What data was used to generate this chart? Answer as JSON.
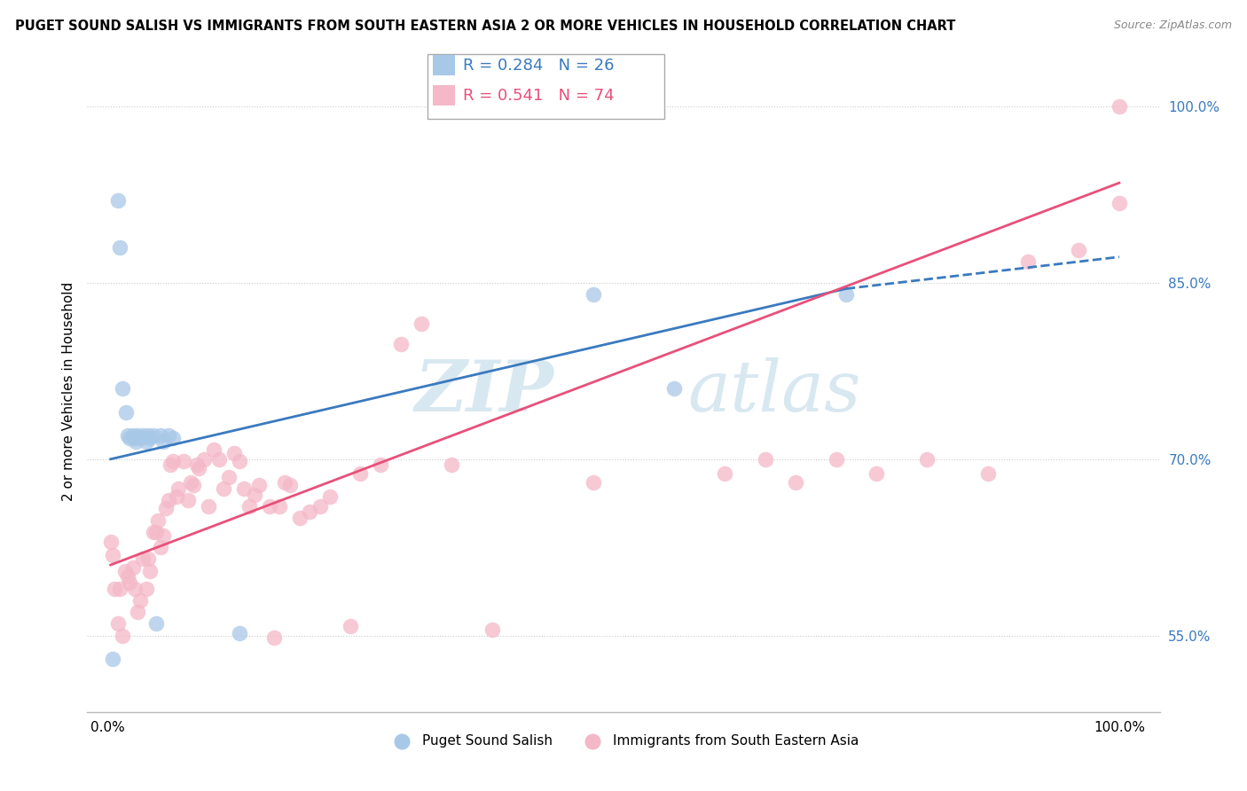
{
  "title": "PUGET SOUND SALISH VS IMMIGRANTS FROM SOUTH EASTERN ASIA 2 OR MORE VEHICLES IN HOUSEHOLD CORRELATION CHART",
  "source": "Source: ZipAtlas.com",
  "ylabel": "2 or more Vehicles in Household",
  "xlim": [
    -0.02,
    1.04
  ],
  "ylim": [
    0.485,
    1.03
  ],
  "x_tick_labels": [
    "0.0%",
    "100.0%"
  ],
  "x_tick_positions": [
    0.0,
    1.0
  ],
  "y_tick_positions": [
    0.55,
    0.7,
    0.85,
    1.0
  ],
  "y_tick_labels": [
    "55.0%",
    "70.0%",
    "85.0%",
    "100.0%"
  ],
  "legend_labels": [
    "Puget Sound Salish",
    "Immigrants from South Eastern Asia"
  ],
  "legend_r_n": [
    {
      "R": "0.284",
      "N": "26"
    },
    {
      "R": "0.541",
      "N": "74"
    }
  ],
  "blue_color": "#a8c8e8",
  "pink_color": "#f4b8c8",
  "blue_line_color": "#3a7abf",
  "pink_line_color": "#e8507a",
  "watermark_zip": "ZIP",
  "watermark_atlas": "atlas",
  "blue_scatter_x": [
    0.005,
    0.01,
    0.012,
    0.015,
    0.018,
    0.02,
    0.022,
    0.025,
    0.027,
    0.028,
    0.03,
    0.032,
    0.035,
    0.038,
    0.04,
    0.042,
    0.045,
    0.048,
    0.052,
    0.055,
    0.06,
    0.065,
    0.13,
    0.48,
    0.56,
    0.73
  ],
  "blue_scatter_y": [
    0.53,
    0.92,
    0.88,
    0.76,
    0.74,
    0.72,
    0.718,
    0.72,
    0.718,
    0.715,
    0.72,
    0.718,
    0.72,
    0.715,
    0.72,
    0.718,
    0.72,
    0.56,
    0.72,
    0.715,
    0.72,
    0.718,
    0.552,
    0.84,
    0.76,
    0.84
  ],
  "pink_scatter_x": [
    0.003,
    0.005,
    0.007,
    0.01,
    0.012,
    0.015,
    0.017,
    0.02,
    0.022,
    0.025,
    0.027,
    0.03,
    0.032,
    0.035,
    0.038,
    0.04,
    0.042,
    0.045,
    0.048,
    0.05,
    0.052,
    0.055,
    0.058,
    0.06,
    0.062,
    0.065,
    0.068,
    0.07,
    0.075,
    0.08,
    0.082,
    0.085,
    0.088,
    0.09,
    0.095,
    0.1,
    0.105,
    0.11,
    0.115,
    0.12,
    0.125,
    0.13,
    0.135,
    0.14,
    0.145,
    0.15,
    0.16,
    0.165,
    0.17,
    0.175,
    0.18,
    0.19,
    0.2,
    0.21,
    0.22,
    0.24,
    0.25,
    0.27,
    0.29,
    0.31,
    0.34,
    0.38,
    0.48,
    0.61,
    0.65,
    0.68,
    0.72,
    0.76,
    0.81,
    0.87,
    0.91,
    0.96,
    1.0,
    1.0
  ],
  "pink_scatter_y": [
    0.63,
    0.618,
    0.59,
    0.56,
    0.59,
    0.55,
    0.605,
    0.6,
    0.595,
    0.608,
    0.59,
    0.57,
    0.58,
    0.615,
    0.59,
    0.615,
    0.605,
    0.638,
    0.638,
    0.648,
    0.625,
    0.635,
    0.658,
    0.665,
    0.695,
    0.698,
    0.668,
    0.675,
    0.698,
    0.665,
    0.68,
    0.678,
    0.695,
    0.692,
    0.7,
    0.66,
    0.708,
    0.7,
    0.675,
    0.685,
    0.705,
    0.698,
    0.675,
    0.66,
    0.67,
    0.678,
    0.66,
    0.548,
    0.66,
    0.68,
    0.678,
    0.65,
    0.655,
    0.66,
    0.668,
    0.558,
    0.688,
    0.695,
    0.798,
    0.815,
    0.695,
    0.555,
    0.68,
    0.688,
    0.7,
    0.68,
    0.7,
    0.688,
    0.7,
    0.688,
    0.868,
    0.878,
    0.918,
    1.0
  ],
  "blue_line_x_start": 0.003,
  "blue_line_x_solid_end": 0.73,
  "blue_line_x_dash_end": 1.0,
  "blue_line_y_start": 0.7,
  "blue_line_y_solid_end": 0.845,
  "blue_line_y_dash_end": 0.872,
  "pink_line_x_start": 0.003,
  "pink_line_x_end": 1.0,
  "pink_line_y_start": 0.61,
  "pink_line_y_end": 0.935
}
